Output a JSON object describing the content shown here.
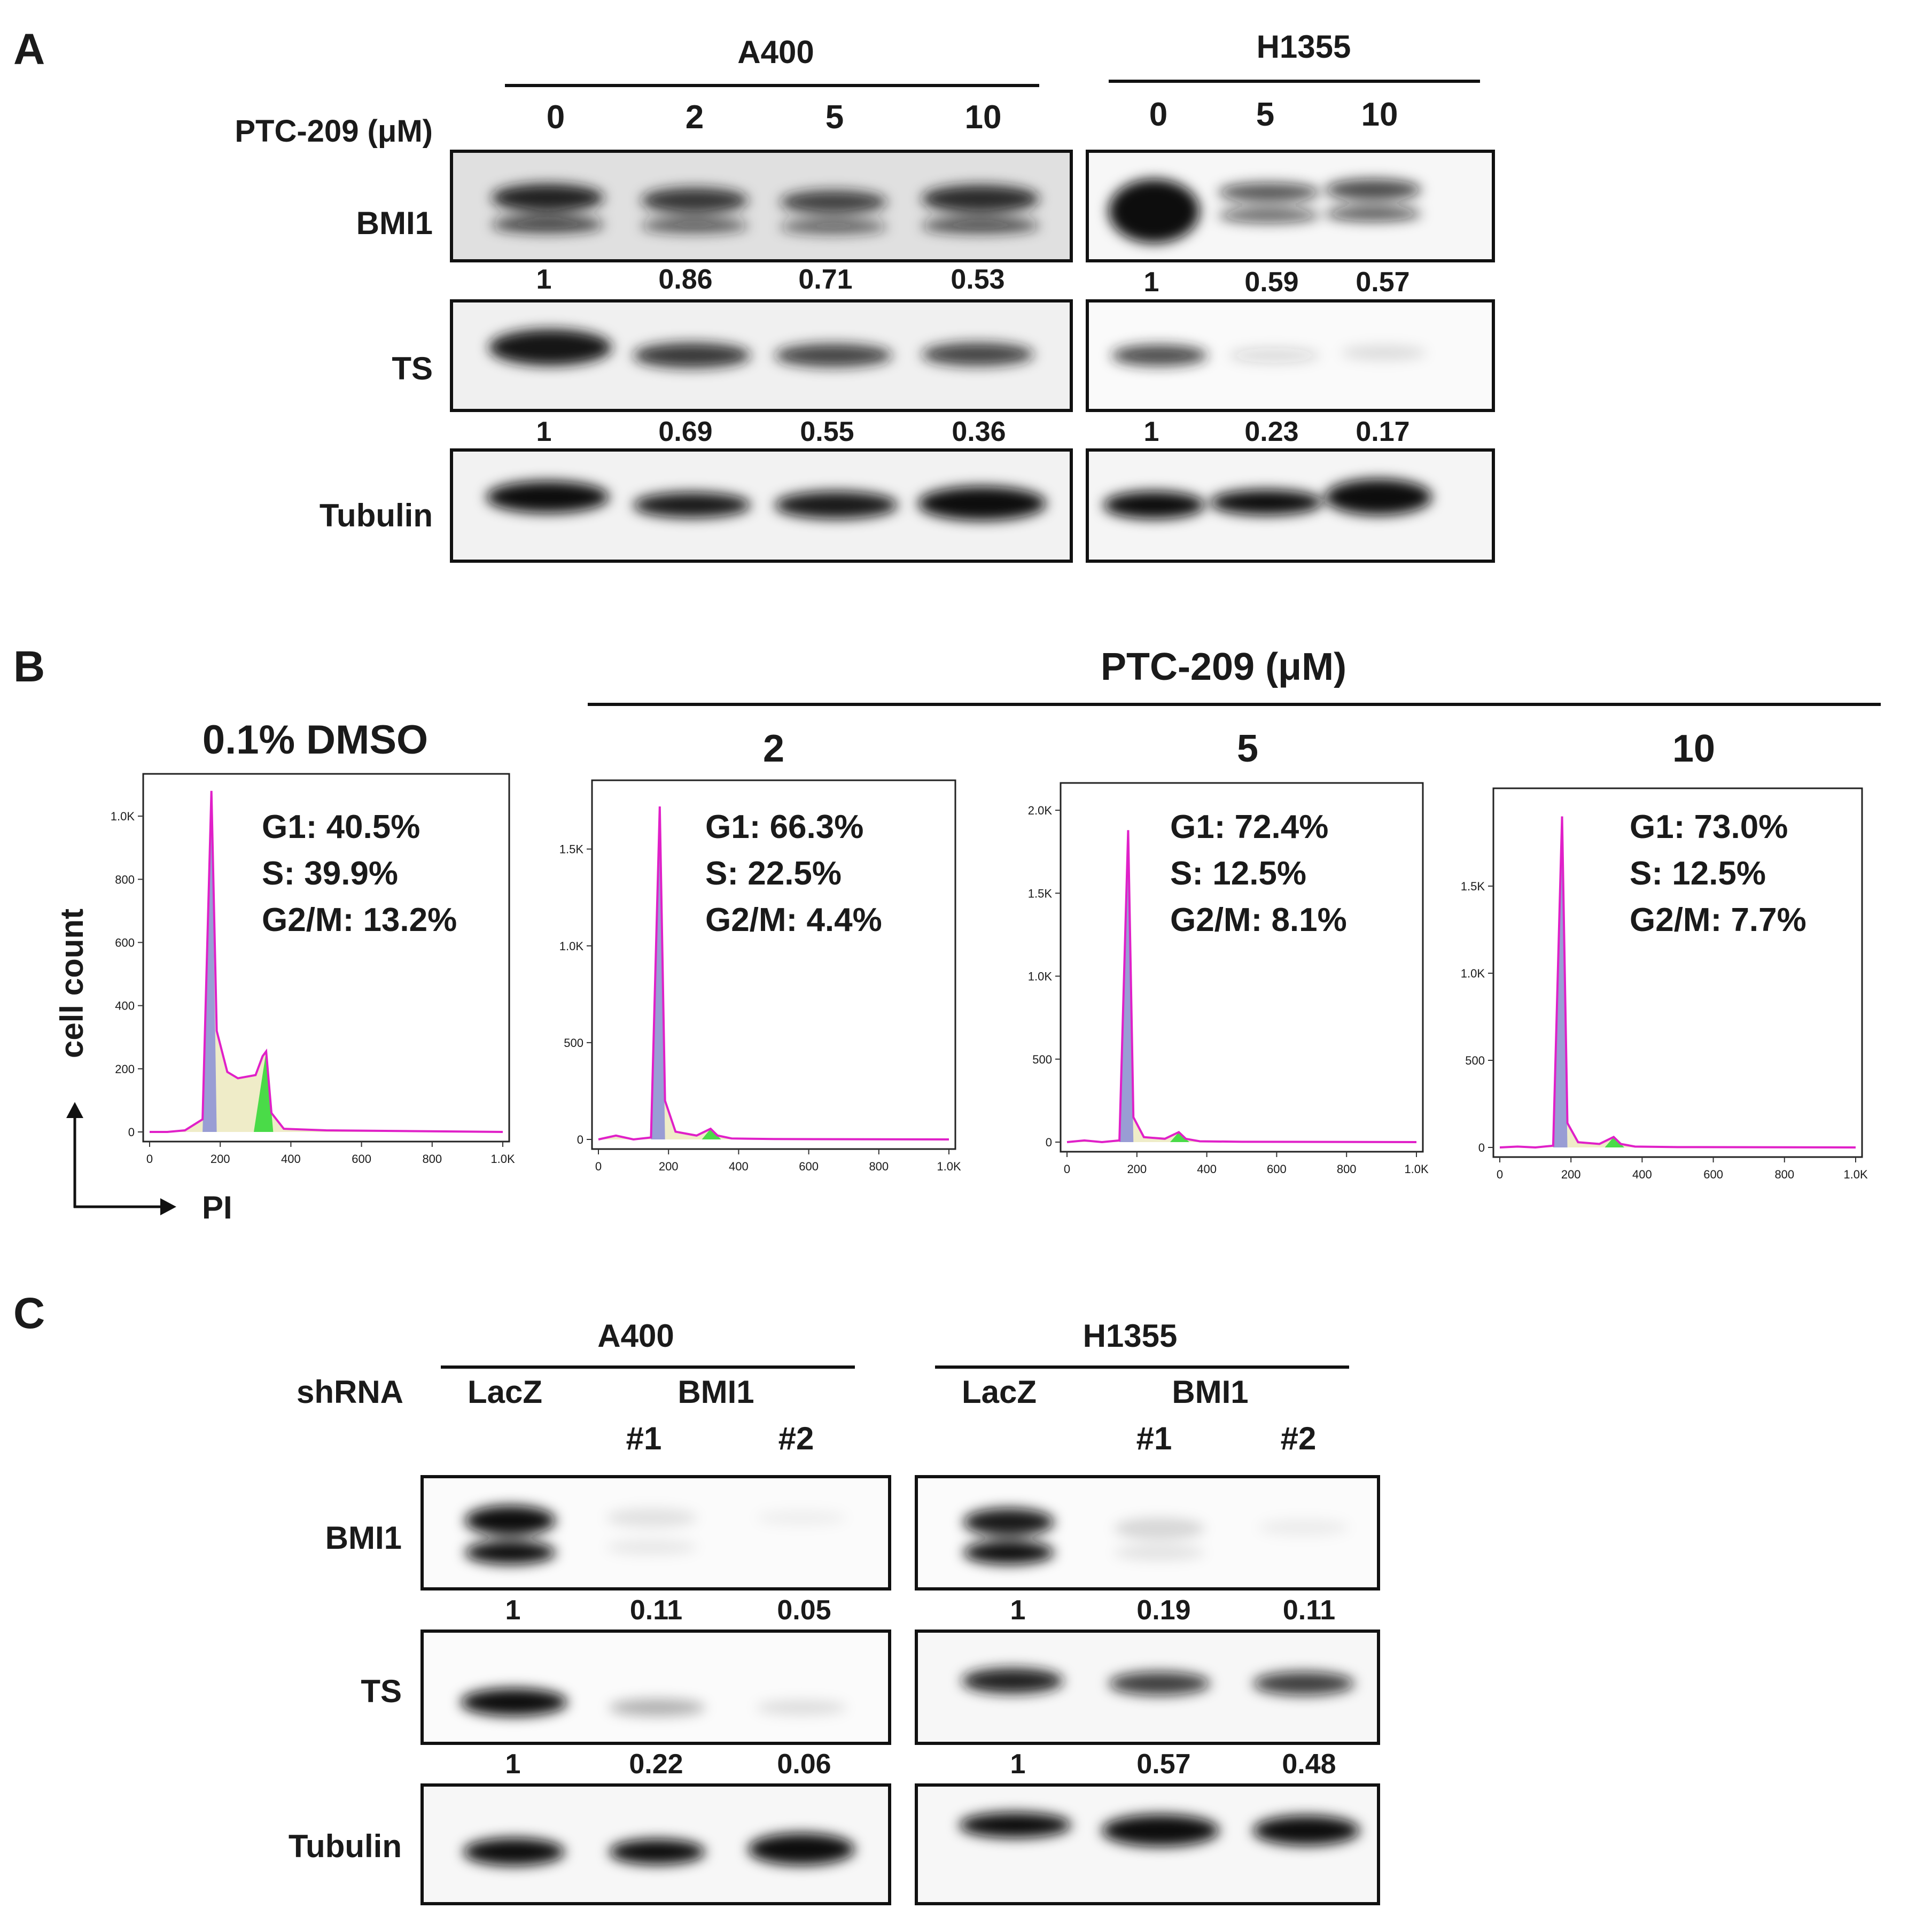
{
  "panel_a": {
    "letter": "A",
    "treatment_label": "PTC-209 (μM)",
    "groups": [
      {
        "cell_line": "A400",
        "doses": [
          "0",
          "2",
          "5",
          "10"
        ]
      },
      {
        "cell_line": "H1355",
        "doses": [
          "0",
          "5",
          "10"
        ]
      }
    ],
    "blots": [
      {
        "label": "BMI1",
        "a400_values": [
          "1",
          "0.86",
          "0.71",
          "0.53"
        ],
        "h1355_values": [
          "1",
          "0.59",
          "0.57"
        ]
      },
      {
        "label": "TS",
        "a400_values": [
          "1",
          "0.69",
          "0.55",
          "0.36"
        ],
        "h1355_values": [
          "1",
          "0.23",
          "0.17"
        ]
      },
      {
        "label": "Tubulin",
        "a400_values": [],
        "h1355_values": []
      }
    ]
  },
  "panel_b": {
    "letter": "B",
    "treatment_label": "PTC-209 (μM)",
    "y_axis_label": "cell count",
    "x_axis_label": "PI",
    "histograms": [
      {
        "title": "0.1% DMSO",
        "g1": "G1: 40.5%",
        "s": "S: 39.9%",
        "g2m": "G2/M: 13.2%",
        "yticks": [
          "0",
          "200",
          "400",
          "600",
          "800",
          "1.0K"
        ],
        "xticks": [
          "0",
          "200",
          "400",
          "600",
          "800",
          "1.0K"
        ]
      },
      {
        "title": "2",
        "g1": "G1: 66.3%",
        "s": "S: 22.5%",
        "g2m": "G2/M: 4.4%",
        "yticks": [
          "0",
          "500",
          "1.0K",
          "1.5K"
        ],
        "xticks": [
          "0",
          "200",
          "400",
          "600",
          "800",
          "1.0K"
        ]
      },
      {
        "title": "5",
        "g1": "G1: 72.4%",
        "s": "S: 12.5%",
        "g2m": "G2/M: 8.1%",
        "yticks": [
          "0",
          "500",
          "1.0K",
          "1.5K",
          "2.0K"
        ],
        "xticks": [
          "0",
          "200",
          "400",
          "600",
          "800",
          "1.0K"
        ]
      },
      {
        "title": "10",
        "g1": "G1: 73.0%",
        "s": "S: 12.5%",
        "g2m": "G2/M: 7.7%",
        "yticks": [
          "0",
          "500",
          "1.0K",
          "1.5K"
        ],
        "xticks": [
          "0",
          "200",
          "400",
          "600",
          "800",
          "1.0K"
        ]
      }
    ]
  },
  "panel_c": {
    "letter": "C",
    "shrna_label": "shRNA",
    "groups": [
      {
        "cell_line": "A400",
        "lacz": "LacZ",
        "bmi1": "BMI1",
        "clones": [
          "#1",
          "#2"
        ]
      },
      {
        "cell_line": "H1355",
        "lacz": "LacZ",
        "bmi1": "BMI1",
        "clones": [
          "#1",
          "#2"
        ]
      }
    ],
    "blots": [
      {
        "label": "BMI1",
        "a400_values": [
          "1",
          "0.11",
          "0.05"
        ],
        "h1355_values": [
          "1",
          "0.19",
          "0.11"
        ]
      },
      {
        "label": "TS",
        "a400_values": [
          "1",
          "0.22",
          "0.06"
        ],
        "h1355_values": [
          "1",
          "0.57",
          "0.48"
        ]
      },
      {
        "label": "Tubulin",
        "a400_values": [],
        "h1355_values": []
      }
    ]
  },
  "chart_data": [
    {
      "type": "area",
      "title": "0.1% DMSO",
      "xlabel": "PI",
      "ylabel": "cell count",
      "xlim": [
        0,
        1000
      ],
      "ylim": [
        0,
        1100
      ],
      "x": [
        0,
        50,
        100,
        150,
        175,
        190,
        220,
        250,
        300,
        320,
        330,
        345,
        380,
        500,
        1000
      ],
      "values": [
        0,
        0,
        5,
        40,
        1080,
        320,
        190,
        170,
        180,
        240,
        255,
        60,
        10,
        5,
        0
      ]
    },
    {
      "type": "area",
      "title": "2",
      "xlabel": "PI",
      "ylabel": "cell count",
      "xlim": [
        0,
        1000
      ],
      "ylim": [
        0,
        1800
      ],
      "x": [
        0,
        50,
        100,
        150,
        175,
        190,
        220,
        280,
        320,
        340,
        380,
        500,
        1000
      ],
      "values": [
        0,
        20,
        0,
        10,
        1720,
        200,
        40,
        20,
        55,
        20,
        5,
        2,
        0
      ]
    },
    {
      "type": "area",
      "title": "5",
      "xlabel": "PI",
      "ylabel": "cell count",
      "xlim": [
        0,
        1000
      ],
      "ylim": [
        0,
        2100
      ],
      "x": [
        0,
        50,
        100,
        150,
        175,
        190,
        220,
        280,
        320,
        340,
        380,
        500,
        1000
      ],
      "values": [
        0,
        10,
        0,
        10,
        1880,
        150,
        30,
        20,
        60,
        20,
        5,
        2,
        0
      ]
    },
    {
      "type": "area",
      "title": "10",
      "xlabel": "PI",
      "ylabel": "cell count",
      "xlim": [
        0,
        1000
      ],
      "ylim": [
        0,
        2000
      ],
      "x": [
        0,
        50,
        100,
        150,
        175,
        190,
        220,
        280,
        320,
        340,
        380,
        500,
        1000
      ],
      "values": [
        0,
        5,
        0,
        10,
        1900,
        140,
        30,
        20,
        60,
        20,
        5,
        2,
        0
      ]
    }
  ]
}
